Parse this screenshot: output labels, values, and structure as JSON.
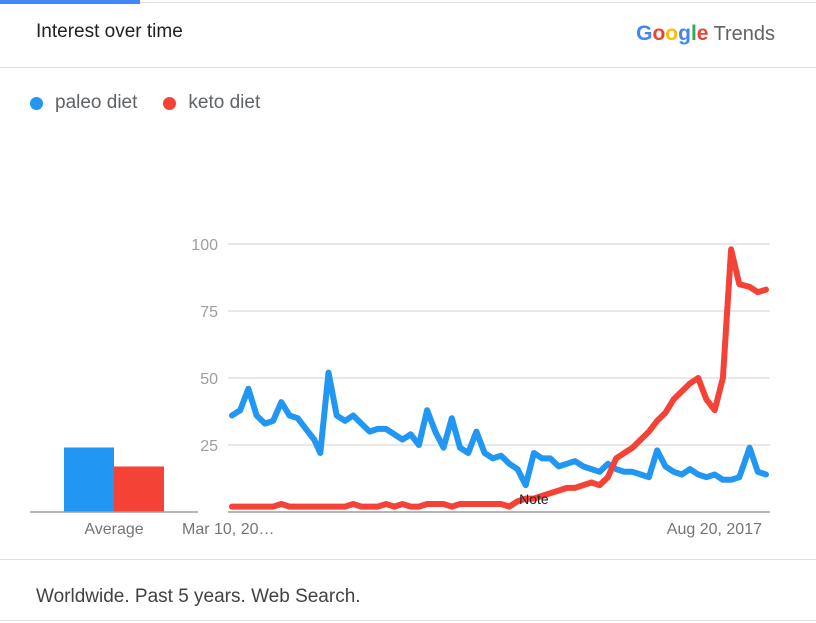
{
  "header": {
    "title": "Interest over time",
    "brand": {
      "letters": [
        {
          "char": "G",
          "color": "#4285f4"
        },
        {
          "char": "o",
          "color": "#ea4335"
        },
        {
          "char": "o",
          "color": "#fbbc05"
        },
        {
          "char": "g",
          "color": "#4285f4"
        },
        {
          "char": "l",
          "color": "#34a853"
        },
        {
          "char": "e",
          "color": "#ea4335"
        }
      ],
      "suffix": "Trends"
    }
  },
  "legend": [
    {
      "label": "paleo diet",
      "color": "#2196f3"
    },
    {
      "label": "keto diet",
      "color": "#f44336"
    }
  ],
  "footer": {
    "text": "Worldwide. Past 5 years. Web Search."
  },
  "chart_data": {
    "type": "line",
    "ylim": [
      0,
      100
    ],
    "yticks": [
      "100",
      "75",
      "50",
      "25"
    ],
    "ytick_values": [
      100,
      75,
      50,
      25
    ],
    "grid": true,
    "legend_position": "top-left",
    "xtick_labels": [
      "Mar 10, 20…",
      "Aug 20, 2017"
    ],
    "annotation": "Note",
    "x": [
      "2013-03-10",
      "2013-04-07",
      "2013-05-05",
      "2013-06-02",
      "2013-06-30",
      "2013-07-28",
      "2013-08-25",
      "2013-09-22",
      "2013-10-20",
      "2013-11-17",
      "2013-12-15",
      "2014-01-05",
      "2014-02-02",
      "2014-03-02",
      "2014-03-30",
      "2014-04-27",
      "2014-05-25",
      "2014-06-22",
      "2014-07-20",
      "2014-08-17",
      "2014-09-14",
      "2014-10-12",
      "2014-11-09",
      "2014-12-07",
      "2015-01-04",
      "2015-02-01",
      "2015-03-01",
      "2015-03-29",
      "2015-04-26",
      "2015-05-24",
      "2015-06-21",
      "2015-07-19",
      "2015-08-16",
      "2015-09-13",
      "2015-10-11",
      "2015-11-08",
      "2015-12-06",
      "2016-01-03",
      "2016-01-31",
      "2016-02-28",
      "2016-03-27",
      "2016-04-24",
      "2016-05-22",
      "2016-06-19",
      "2016-07-17",
      "2016-08-14",
      "2016-09-11",
      "2016-10-09",
      "2016-11-06",
      "2016-12-04",
      "2017-01-01",
      "2017-01-29",
      "2017-02-26",
      "2017-03-26",
      "2017-04-23",
      "2017-05-21",
      "2017-06-18",
      "2017-07-16",
      "2017-08-13",
      "2017-09-10",
      "2017-10-08",
      "2017-11-05",
      "2017-12-03",
      "2018-01-07",
      "2018-02-04",
      "2018-03-04"
    ],
    "series": [
      {
        "name": "paleo diet",
        "color": "#2196f3",
        "values": [
          36,
          38,
          46,
          36,
          33,
          34,
          41,
          36,
          35,
          31,
          27,
          22,
          52,
          36,
          34,
          36,
          33,
          30,
          31,
          31,
          29,
          27,
          29,
          25,
          38,
          30,
          24,
          35,
          24,
          22,
          30,
          22,
          20,
          21,
          18,
          16,
          10,
          22,
          20,
          20,
          17,
          18,
          19,
          17,
          16,
          15,
          18,
          16,
          15,
          15,
          14,
          13,
          23,
          17,
          15,
          14,
          16,
          14,
          13,
          14,
          12,
          12,
          13,
          24,
          15,
          14
        ]
      },
      {
        "name": "keto diet",
        "color": "#f44336",
        "values": [
          2,
          2,
          2,
          2,
          2,
          2,
          3,
          2,
          2,
          2,
          2,
          2,
          2,
          2,
          2,
          3,
          2,
          2,
          2,
          3,
          2,
          3,
          2,
          2,
          3,
          3,
          3,
          2,
          3,
          3,
          3,
          3,
          3,
          3,
          2,
          4,
          5,
          5,
          6,
          7,
          8,
          9,
          9,
          10,
          11,
          10,
          13,
          20,
          22,
          24,
          27,
          30,
          34,
          37,
          42,
          45,
          48,
          50,
          42,
          38,
          50,
          98,
          85,
          84,
          82,
          83
        ]
      }
    ]
  }
}
